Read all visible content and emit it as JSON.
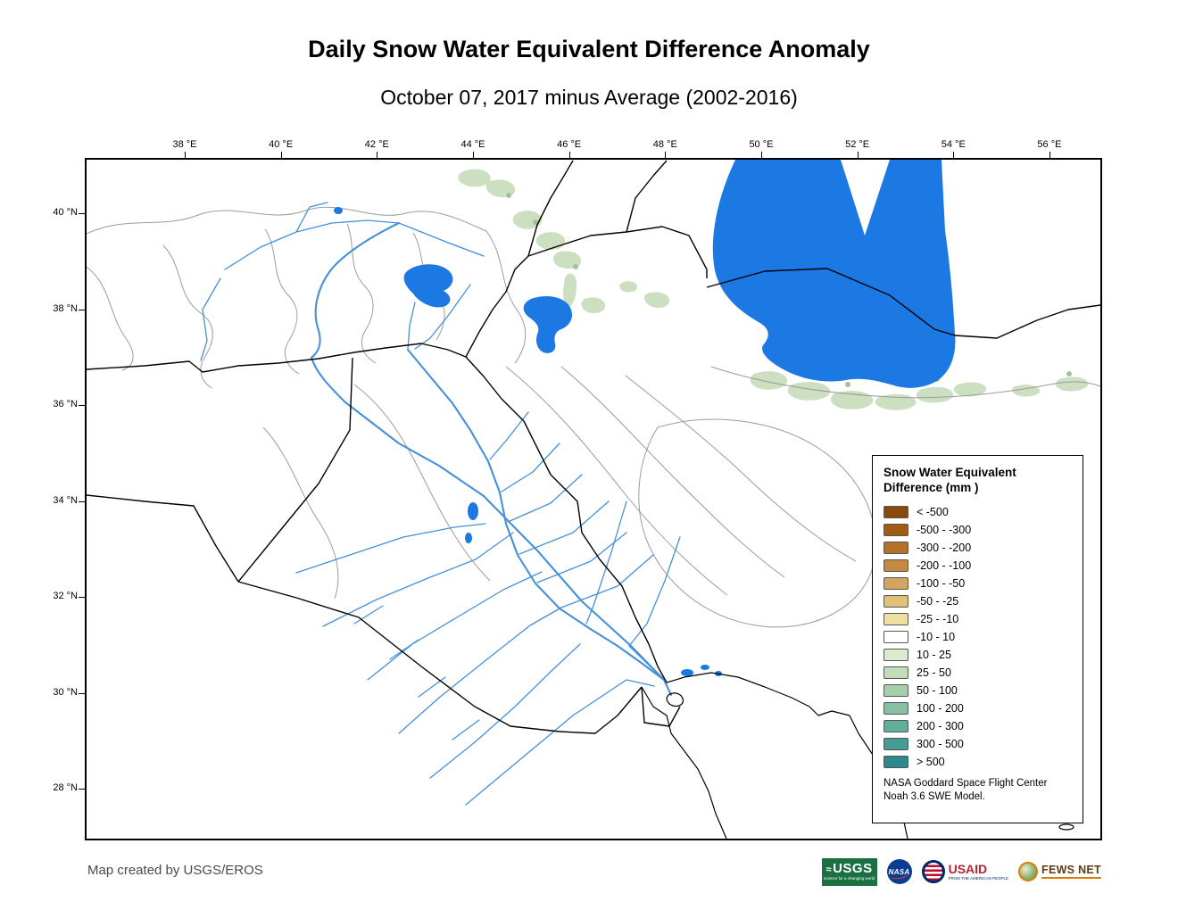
{
  "header": {
    "title": "Daily Snow Water Equivalent Difference Anomaly",
    "subtitle": "October 07, 2017 minus Average (2002-2016)"
  },
  "axes": {
    "longitude": [
      "38 °E",
      "40 °E",
      "42 °E",
      "44 °E",
      "46 °E",
      "48 °E",
      "50 °E",
      "52 °E",
      "54 °E",
      "56 °E"
    ],
    "latitude": [
      "40 °N",
      "38 °N",
      "36 °N",
      "34 °N",
      "32 °N",
      "30 °N",
      "28 °N"
    ]
  },
  "legend": {
    "title_line1": "Snow Water Equivalent",
    "title_line2": "Difference (mm )",
    "items": [
      {
        "label": "< -500",
        "color": "#8a4a0e"
      },
      {
        "label": "-500 - -300",
        "color": "#a05c15"
      },
      {
        "label": "-300 - -200",
        "color": "#b4712a"
      },
      {
        "label": "-200 - -100",
        "color": "#c48a43"
      },
      {
        "label": "-100 - -50",
        "color": "#d3a55f"
      },
      {
        "label": "-50 - -25",
        "color": "#e0c178"
      },
      {
        "label": "-25 - -10",
        "color": "#eedfa2"
      },
      {
        "label": "-10 - 10",
        "color": "#ffffff"
      },
      {
        "label": "10 - 25",
        "color": "#dcead0"
      },
      {
        "label": "25 - 50",
        "color": "#c3ddb9"
      },
      {
        "label": "50 - 100",
        "color": "#a6cfab"
      },
      {
        "label": "100 - 200",
        "color": "#86bfa3"
      },
      {
        "label": "200 - 300",
        "color": "#63ad9b"
      },
      {
        "label": "300 - 500",
        "color": "#459c94"
      },
      {
        "label": "> 500",
        "color": "#2a8a8d"
      }
    ],
    "footnote_line1": "NASA Goddard Space Flight Center",
    "footnote_line2": "Noah 3.6 SWE Model."
  },
  "map": {
    "colors": {
      "water": "#1c78e2",
      "river": "#4690d9",
      "snow": "#ccdfc0",
      "snow_dark": "#a3c396",
      "border": "#000000",
      "basin": "#9b9b9b"
    }
  },
  "footer": {
    "credit": "Map created by USGS/EROS",
    "logos": {
      "usgs": {
        "label": "USGS",
        "tagline": "science for a changing world"
      },
      "nasa": {
        "label": "NASA"
      },
      "usaid": {
        "label": "USAID",
        "tagline": "FROM THE AMERICAN PEOPLE"
      },
      "fewsnet": {
        "label": "FEWS NET"
      }
    }
  }
}
